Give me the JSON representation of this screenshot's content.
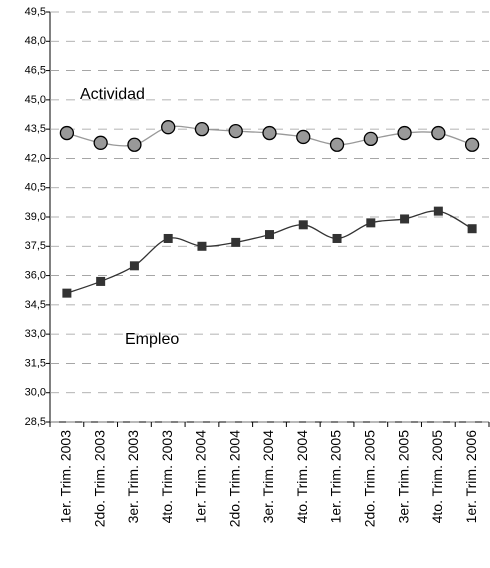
{
  "chart_data": {
    "type": "line",
    "categories": [
      "1er. Trim. 2003",
      "2do. Trim. 2003",
      "3er. Trim. 2003",
      "4to. Trim. 2003",
      "1er. Trim. 2004",
      "2do. Trim. 2004",
      "3er. Trim. 2004",
      "4to. Trim. 2004",
      "1er. Trim. 2005",
      "2do. Trim. 2005",
      "3er. Trim. 2005",
      "4to. Trim. 2005",
      "1er. Trim. 2006"
    ],
    "series": [
      {
        "name": "Actividad",
        "color": "#999999",
        "marker": "circle",
        "values": [
          43.3,
          42.8,
          42.7,
          43.6,
          43.5,
          43.4,
          43.3,
          43.1,
          42.7,
          43.0,
          43.3,
          43.3,
          42.7
        ]
      },
      {
        "name": "Empleo",
        "color": "#333333",
        "marker": "square",
        "values": [
          35.1,
          35.7,
          36.5,
          37.9,
          37.5,
          37.7,
          38.1,
          38.6,
          37.9,
          38.7,
          38.9,
          39.3,
          38.4
        ]
      }
    ],
    "ylim": [
      28.5,
      49.5
    ],
    "yticks": [
      {
        "value": 28.5,
        "label": "28,5"
      },
      {
        "value": 30,
        "label": "30,0"
      },
      {
        "value": 31.5,
        "label": "31,5"
      },
      {
        "value": 33,
        "label": "33,0"
      },
      {
        "value": 34.5,
        "label": "34,5"
      },
      {
        "value": 36,
        "label": "36,0"
      },
      {
        "value": 37.5,
        "label": "37,5"
      },
      {
        "value": 39,
        "label": "39,0"
      },
      {
        "value": 40.5,
        "label": "40,5"
      },
      {
        "value": 42,
        "label": "42,0"
      },
      {
        "value": 43.5,
        "label": "43,5"
      },
      {
        "value": 45,
        "label": "45,0"
      },
      {
        "value": 46.5,
        "label": "46,5"
      },
      {
        "value": 48,
        "label": "48,0"
      },
      {
        "value": 49.5,
        "label": "49,5"
      }
    ],
    "grid": true
  }
}
